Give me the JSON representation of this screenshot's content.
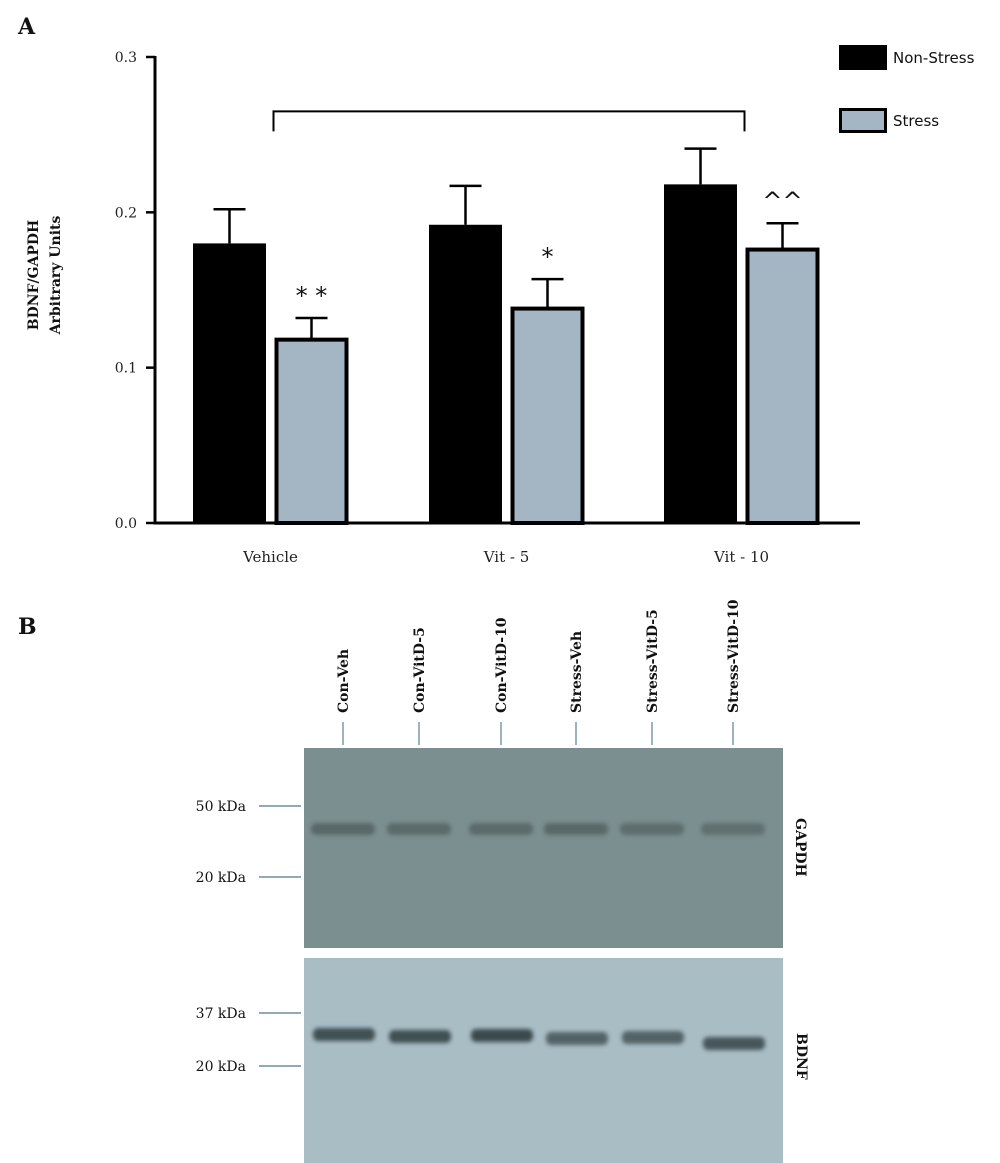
{
  "panels": {
    "a_letter": "A",
    "b_letter": "B"
  },
  "chart_data": {
    "type": "bar",
    "ylabel_lines": [
      "BDNF/GAPDH",
      "Arbitrary Units"
    ],
    "xlabel": "",
    "ylim": [
      0,
      0.3
    ],
    "yticks": [
      "0.0",
      "0.1",
      "0.2",
      "0.3"
    ],
    "categories": [
      "Vehicle",
      "Vit - 5",
      "Vit - 10"
    ],
    "series": [
      {
        "name": "Non-Stress",
        "color": "#000000",
        "values": [
          0.18,
          0.192,
          0.218
        ],
        "errors": [
          0.022,
          0.025,
          0.023
        ]
      },
      {
        "name": "Stress",
        "color": "#a4b6c4",
        "values": [
          0.119,
          0.139,
          0.177
        ],
        "errors": [
          0.013,
          0.018,
          0.016
        ]
      }
    ],
    "annotations": [
      {
        "category": 0,
        "series": 1,
        "text": "* *"
      },
      {
        "category": 1,
        "series": 1,
        "text": "*"
      },
      {
        "category": 2,
        "series": 1,
        "text": "^^"
      }
    ],
    "bracket": {
      "from_category": 0,
      "to_category": 2,
      "level": 0.265
    },
    "legend_position": "top-right",
    "grid": false
  },
  "blot": {
    "lanes": [
      "Con-Veh",
      "Con-VitD-5",
      "Con-VitD-10",
      "Stress-Veh",
      "Stress-VitD-5",
      "Stress-VitD-10"
    ],
    "gapdh": {
      "label": "GAPDH",
      "markers": [
        "50 kDa",
        "20 kDa"
      ],
      "intensity": [
        0.75,
        0.7,
        0.7,
        0.75,
        0.65,
        0.6
      ]
    },
    "bdnf": {
      "label": "BDNF",
      "markers": [
        "37 kDa",
        "20 kDa"
      ],
      "intensity": [
        0.85,
        0.85,
        0.9,
        0.7,
        0.7,
        0.8
      ]
    }
  }
}
